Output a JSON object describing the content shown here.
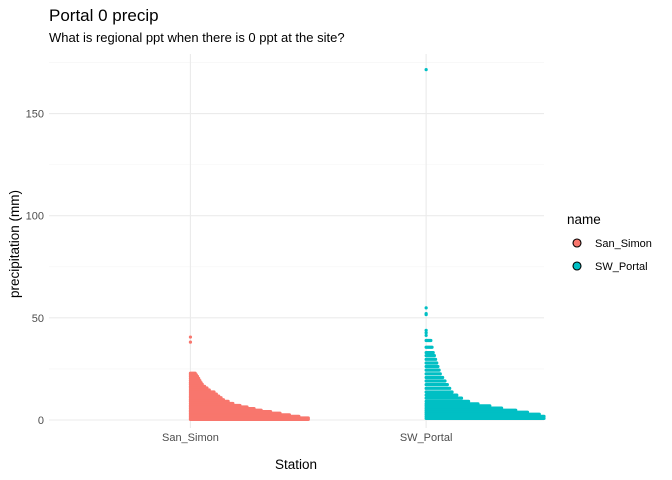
{
  "chart_data": {
    "type": "scatter",
    "title": "Portal 0 precip",
    "subtitle": "What is regional ppt when there is 0 ppt at the site?",
    "xlabel": "Station",
    "ylabel": "precipitation (mm)",
    "categories": [
      "San_Simon",
      "SW_Portal"
    ],
    "ylim": [
      -4,
      180
    ],
    "yticks": [
      0,
      50,
      100,
      150
    ],
    "grid": true,
    "legend": {
      "title": "name",
      "placement": "right",
      "entries": [
        {
          "label": "San_Simon",
          "color": "#F8766D"
        },
        {
          "label": "SW_Portal",
          "color": "#00BFC4"
        }
      ]
    },
    "series": [
      {
        "name": "San_Simon",
        "color": "#F8766D",
        "x": "San_Simon",
        "outliers": [
          40.6,
          38.1
        ],
        "bands": [
          {
            "y": 22.9,
            "spread": 0.02
          },
          {
            "y": 22.1,
            "spread": 0.025
          },
          {
            "y": 21.3,
            "spread": 0.03
          },
          {
            "y": 20.3,
            "spread": 0.035
          },
          {
            "y": 19.3,
            "spread": 0.04
          },
          {
            "y": 18.3,
            "spread": 0.045
          },
          {
            "y": 17.5,
            "spread": 0.05
          },
          {
            "y": 16.5,
            "spread": 0.06
          },
          {
            "y": 15.7,
            "spread": 0.07
          },
          {
            "y": 14.7,
            "spread": 0.08
          },
          {
            "y": 13.7,
            "spread": 0.1
          },
          {
            "y": 12.7,
            "spread": 0.11
          },
          {
            "y": 11.7,
            "spread": 0.12
          },
          {
            "y": 10.9,
            "spread": 0.13
          },
          {
            "y": 9.9,
            "spread": 0.14
          },
          {
            "y": 9.1,
            "spread": 0.16
          },
          {
            "y": 8.1,
            "spread": 0.18
          },
          {
            "y": 7.1,
            "spread": 0.21
          },
          {
            "y": 6.4,
            "spread": 0.24
          },
          {
            "y": 5.6,
            "spread": 0.27
          },
          {
            "y": 4.8,
            "spread": 0.3
          },
          {
            "y": 4.1,
            "spread": 0.34
          },
          {
            "y": 3.3,
            "spread": 0.38
          },
          {
            "y": 2.5,
            "spread": 0.42
          },
          {
            "y": 1.8,
            "spread": 0.46
          },
          {
            "y": 1.0,
            "spread": 0.5
          },
          {
            "y": 0.3,
            "spread": 0.5
          }
        ]
      },
      {
        "name": "SW_Portal",
        "color": "#00BFC4",
        "x": "SW_Portal",
        "outliers": [
          171.5,
          54.9,
          52.1,
          51.6,
          43.9,
          42.7,
          41.4
        ],
        "bands": [
          {
            "y": 38.9,
            "spread": 0.02
          },
          {
            "y": 35.6,
            "spread": 0.025
          },
          {
            "y": 33.0,
            "spread": 0.03
          },
          {
            "y": 31.5,
            "spread": 0.035
          },
          {
            "y": 29.7,
            "spread": 0.04
          },
          {
            "y": 27.9,
            "spread": 0.045
          },
          {
            "y": 26.2,
            "spread": 0.05
          },
          {
            "y": 24.4,
            "spread": 0.055
          },
          {
            "y": 22.6,
            "spread": 0.06
          },
          {
            "y": 20.8,
            "spread": 0.07
          },
          {
            "y": 19.1,
            "spread": 0.08
          },
          {
            "y": 17.3,
            "spread": 0.09
          },
          {
            "y": 15.5,
            "spread": 0.1
          },
          {
            "y": 13.7,
            "spread": 0.11
          },
          {
            "y": 12.2,
            "spread": 0.13
          },
          {
            "y": 10.7,
            "spread": 0.15
          },
          {
            "y": 9.1,
            "spread": 0.18
          },
          {
            "y": 7.9,
            "spread": 0.22
          },
          {
            "y": 6.9,
            "spread": 0.27
          },
          {
            "y": 5.8,
            "spread": 0.32
          },
          {
            "y": 4.8,
            "spread": 0.38
          },
          {
            "y": 3.8,
            "spread": 0.43
          },
          {
            "y": 2.8,
            "spread": 0.48
          },
          {
            "y": 1.8,
            "spread": 0.5
          },
          {
            "y": 0.8,
            "spread": 0.5
          }
        ]
      }
    ]
  }
}
